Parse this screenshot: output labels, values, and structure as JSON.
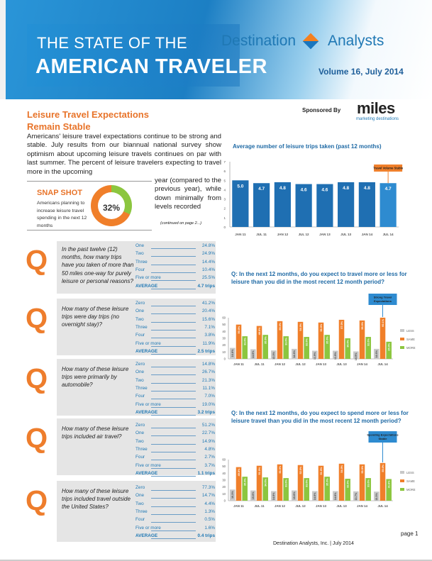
{
  "header": {
    "title_line1": "THE STATE OF THE",
    "title_line2": "AMERICAN TRAVELER",
    "brand_left": "Destination",
    "brand_right": "Analysts",
    "volume": "Volume 16, July 2014"
  },
  "section": {
    "title_line1": "Leisure Travel Expectations",
    "title_line2": "Remain Stable",
    "sponsor_label": "Sponsored By",
    "sponsor_name": "miles",
    "sponsor_sub": "marketing destinations",
    "intro_main": "Americans' leisure travel expectations continue to be strong and stable. July results from our biannual national survey show optimism about upcoming leisure travels continues on par with last summer. The percent of leisure travelers expecting to travel more in the upcoming",
    "intro_side": "year (compared to the previous year), while down minimally from levels recorded",
    "continued": "(continued on page 2...)"
  },
  "snapshot": {
    "title": "SNAP SHOT",
    "text": "Americans planning to increase leisure travel spending in the next 12 months",
    "percent": "32%",
    "value": 32
  },
  "questions": [
    {
      "q": "Q",
      "text": "In the past twelve (12) months, how many trips have you taken of more than 50 miles one-way for purely leisure or personal reasons?",
      "answers": [
        {
          "label": "One",
          "value": "24.8%"
        },
        {
          "label": "Two",
          "value": "24.9%"
        },
        {
          "label": "Three",
          "value": "14.4%"
        },
        {
          "label": "Four",
          "value": "10.4%"
        },
        {
          "label": "Five or more",
          "value": "25.5%"
        },
        {
          "label": "AVERAGE",
          "value": "4.7 trips"
        }
      ]
    },
    {
      "q": "Q",
      "text": "How many of these leisure trips were day trips (no overnight stay)?",
      "answers": [
        {
          "label": "Zero",
          "value": "41.2%"
        },
        {
          "label": "One",
          "value": "20.4%"
        },
        {
          "label": "Two",
          "value": "15.6%"
        },
        {
          "label": "Three",
          "value": "7.1%"
        },
        {
          "label": "Four",
          "value": "3.8%"
        },
        {
          "label": "Five or more",
          "value": "11.9%"
        },
        {
          "label": "AVERAGE",
          "value": "2.5 trips"
        }
      ]
    },
    {
      "q": "Q",
      "text": "How many of these leisure trips were primarily by automobile?",
      "answers": [
        {
          "label": "Zero",
          "value": "14.8%"
        },
        {
          "label": "One",
          "value": "26.7%"
        },
        {
          "label": "Two",
          "value": "21.3%"
        },
        {
          "label": "Three",
          "value": "11.1%"
        },
        {
          "label": "Four",
          "value": "7.0%"
        },
        {
          "label": "Five or more",
          "value": "19.0%"
        },
        {
          "label": "AVERAGE",
          "value": "3.2 trips"
        }
      ]
    },
    {
      "q": "Q",
      "text": "How many of these leisure trips included air travel?",
      "answers": [
        {
          "label": "Zero",
          "value": "51.2%"
        },
        {
          "label": "One",
          "value": "22.7%"
        },
        {
          "label": "Two",
          "value": "14.9%"
        },
        {
          "label": "Three",
          "value": "4.8%"
        },
        {
          "label": "Four",
          "value": "2.7%"
        },
        {
          "label": "Five or more",
          "value": "3.7%"
        },
        {
          "label": "AVERAGE",
          "value": "1.1 trips"
        }
      ]
    },
    {
      "q": "Q",
      "text": "How many of these leisure trips included travel outside the United States?",
      "answers": [
        {
          "label": "Zero",
          "value": "77.3%"
        },
        {
          "label": "One",
          "value": "14.7%"
        },
        {
          "label": "Two",
          "value": "4.4%"
        },
        {
          "label": "Three",
          "value": "1.3%"
        },
        {
          "label": "Four",
          "value": "0.5%"
        },
        {
          "label": "Five or more",
          "value": "1.6%"
        },
        {
          "label": "AVERAGE",
          "value": "0.4 trips"
        }
      ]
    }
  ],
  "chart_data": [
    {
      "type": "bar",
      "title": "Average number of leisure trips taken (past 12 months)",
      "categories": [
        "JAN 11",
        "JUL 11",
        "JAN 12",
        "JUL 12",
        "JAN 13",
        "JUL 13",
        "JAN 14",
        "JUL 14"
      ],
      "values": [
        5.0,
        4.7,
        4.8,
        4.6,
        4.6,
        4.8,
        4.8,
        4.7
      ],
      "data_labels": [
        "5.0",
        "4.7",
        "4.8",
        "4.6",
        "4.6",
        "4.8",
        "4.8",
        "4.7"
      ],
      "ylim": [
        0,
        7
      ],
      "y_ticks": [
        "0",
        "1",
        "2",
        "3",
        "4",
        "5",
        "6",
        "7"
      ],
      "highlight_index": 7,
      "callout": "Travel Volume Stable",
      "colors": {
        "bar": "#1f6fb2",
        "highlight": "#2e8bd0",
        "callout": "#f07f2a"
      }
    },
    {
      "type": "bar",
      "title": "Q: In the next 12 months, do you expect to travel more or less for leisure than you did in the most recent 12 month period?",
      "categories": [
        "JAN 11",
        "JUL 11",
        "JAN 12",
        "JUL 12",
        "JAN 13",
        "JUL 13",
        "JAN 14",
        "JUL 14"
      ],
      "series": [
        {
          "name": "LESS",
          "values": [
            16.0,
            14.0,
            12.3,
            14.6,
            11.9,
            11.9,
            10.9,
            14.6
          ],
          "labels": [
            "16.0%",
            "14.0%",
            "12.3%",
            "14.6%",
            "11.9%",
            "11.9%",
            "10.9%",
            "14.6%"
          ]
        },
        {
          "name": "SAME",
          "values": [
            50.0,
            48.0,
            55.0,
            54.0,
            53.0,
            57.0,
            56.0,
            60.1
          ],
          "labels": [
            "50.0%",
            "48.0%",
            "55.0%",
            "54.0%",
            "53.0%",
            "57.0%",
            "56.0%",
            "60.1%"
          ]
        },
        {
          "name": "MORE",
          "values": [
            33.0,
            35.0,
            33.0,
            32.0,
            35.0,
            30.0,
            32.0,
            25.0
          ],
          "labels": [
            "33.0%",
            "35.0%",
            "33.0%",
            "32.0%",
            "35.0%",
            "30.0%",
            "32.0%",
            "25.0%"
          ]
        }
      ],
      "ylim": [
        0,
        60
      ],
      "y_ticks": [
        "0",
        "10",
        "20",
        "30",
        "40",
        "50",
        "60"
      ],
      "legend": "right",
      "callout": "Strong Travel Expectations",
      "colors": {
        "LESS": "#c8c8c8",
        "SAME": "#f07f2a",
        "MORE": "#8cc63f",
        "callout": "#2e8bd0"
      }
    },
    {
      "type": "bar",
      "title": "Q: In the next 12 months, do you expect to spend more or less for leisure travel than you did in the most recent 12 month period?",
      "categories": [
        "JAN 11",
        "JUL 11",
        "JAN 12",
        "JUL 12",
        "JAN 13",
        "JUL 13",
        "JAN 14",
        "JUL 14"
      ],
      "series": [
        {
          "name": "LESS",
          "values": [
            16.3,
            15.0,
            14.0,
            15.0,
            14.0,
            14.0,
            13.7,
            13.3
          ],
          "labels": [
            "16.3%",
            "15.0%",
            "14.0%",
            "15.0%",
            "14.0%",
            "14.0%",
            "13.7%",
            "13.3%"
          ]
        },
        {
          "name": "SAME",
          "values": [
            49.0,
            51.0,
            53.0,
            52.0,
            51.0,
            54.0,
            53.0,
            55.0
          ],
          "labels": [
            "49.0%",
            "51.0%",
            "53.0%",
            "52.0%",
            "51.0%",
            "54.0%",
            "53.0%",
            "55.0%"
          ]
        },
        {
          "name": "MORE",
          "values": [
            35.0,
            34.0,
            33.0,
            33.0,
            35.0,
            32.0,
            33.0,
            31.6
          ],
          "labels": [
            "35.0%",
            "34.0%",
            "33.0%",
            "33.0%",
            "35.0%",
            "32.0%",
            "33.0%",
            "31.6%"
          ]
        }
      ],
      "ylim": [
        0,
        60
      ],
      "y_ticks": [
        "0",
        "10",
        "20",
        "30",
        "40",
        "50",
        "60"
      ],
      "legend": "right",
      "callout": "Spending Expectations Stable",
      "colors": {
        "LESS": "#c8c8c8",
        "SAME": "#f07f2a",
        "MORE": "#8cc63f",
        "callout": "#2e8bd0"
      }
    }
  ],
  "footer": {
    "text": "Destination Analysts, Inc. | July 2014",
    "page": "page 1"
  }
}
